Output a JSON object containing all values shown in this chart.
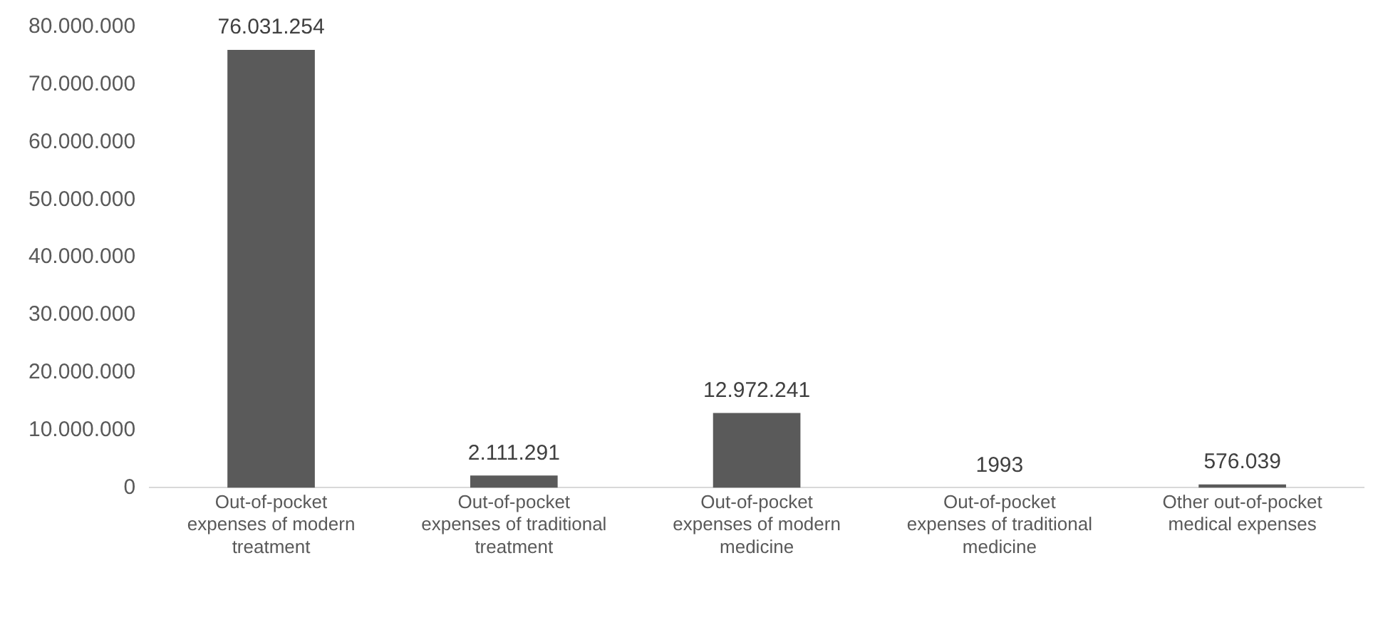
{
  "chart_data": {
    "type": "bar",
    "categories": [
      "Out-of-pocket expenses of modern treatment",
      "Out-of-pocket expenses of traditional treatment",
      "Out-of-pocket expenses of modern medicine",
      "Out-of-pocket expenses of traditional medicine",
      "Other out-of-pocket medical expenses"
    ],
    "values": [
      76031254,
      2111291,
      12972241,
      1993,
      576039
    ],
    "value_labels": [
      "76.031.254",
      "2.111.291",
      "12.972.241",
      "1993",
      "576.039"
    ],
    "color": "#5a5a5a",
    "ylim": [
      0,
      80000000
    ],
    "yticks": [
      {
        "value": 0,
        "label": "0"
      },
      {
        "value": 10000000,
        "label": "10.000.000"
      },
      {
        "value": 20000000,
        "label": "20.000.000"
      },
      {
        "value": 30000000,
        "label": "30.000.000"
      },
      {
        "value": 40000000,
        "label": "40.000.000"
      },
      {
        "value": 50000000,
        "label": "50.000.000"
      },
      {
        "value": 60000000,
        "label": "60.000.000"
      },
      {
        "value": 70000000,
        "label": "70.000.000"
      },
      {
        "value": 80000000,
        "label": "80.000.000"
      }
    ],
    "grid": false,
    "legend": false
  }
}
